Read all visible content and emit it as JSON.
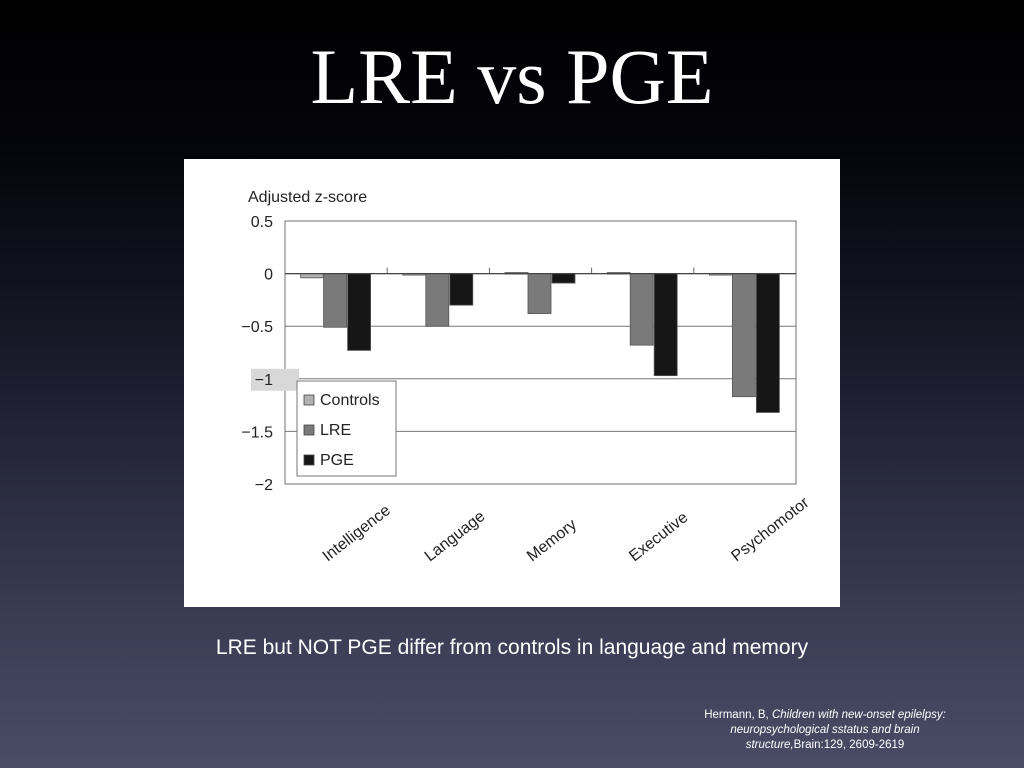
{
  "slide": {
    "title": "LRE vs PGE",
    "caption": "LRE but NOT PGE differ from controls in language and memory",
    "citation": {
      "author": "Hermann, B, ",
      "work": "Children with new-onset epilelpsy: neuropsychological sstatus and brain structure,",
      "source": "Brain:129, 2609-2619"
    }
  },
  "chart_data": {
    "type": "bar",
    "ylabel": "Adjusted z-score",
    "ylim": [
      -2,
      0.5
    ],
    "yticks": [
      0.5,
      0,
      -0.5,
      -1,
      -1.5,
      -2
    ],
    "ytick_labels": [
      "0.5",
      "0",
      "−0.5",
      "−1",
      "−1.5",
      "−2"
    ],
    "categories": [
      "Intelligence",
      "Language",
      "Memory",
      "Executive",
      "Psychomotor"
    ],
    "series": [
      {
        "name": "Controls",
        "color": "#b0b0b0",
        "values": [
          -0.04,
          0.0,
          0.01,
          0.01,
          0.0
        ]
      },
      {
        "name": "LRE",
        "color": "#7a7a7a",
        "values": [
          -0.51,
          -0.5,
          -0.38,
          -0.68,
          -1.17
        ]
      },
      {
        "name": "PGE",
        "color": "#161616",
        "values": [
          -0.73,
          -0.3,
          -0.09,
          -0.97,
          -1.32
        ]
      }
    ],
    "grid": true,
    "legend_position": "bottom-left"
  }
}
